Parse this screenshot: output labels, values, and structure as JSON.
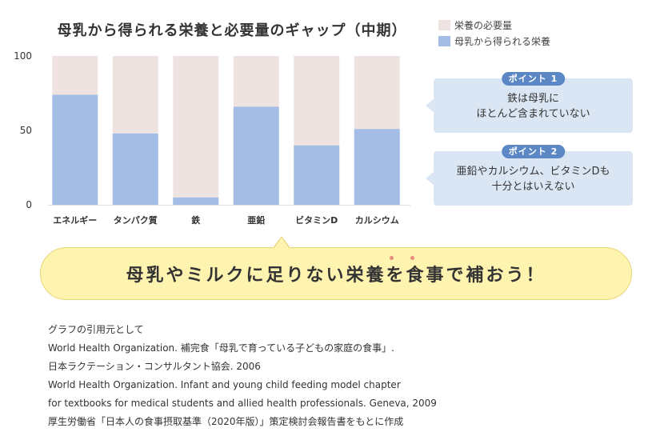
{
  "chart_data": {
    "type": "bar",
    "stacked": true,
    "title": "母乳から得られる栄養と必要量のギャップ（中期）",
    "categories": [
      "エネルギー",
      "タンパク質",
      "鉄",
      "亜鉛",
      "ビタミンD",
      "カルシウム"
    ],
    "series": [
      {
        "name": "母乳から得られる栄養",
        "color": "#a4bde4",
        "values": [
          74,
          48,
          5,
          66,
          40,
          51
        ]
      },
      {
        "name": "栄養の必要量",
        "color": "#efe3e2",
        "values": [
          26,
          52,
          95,
          34,
          60,
          49
        ]
      }
    ],
    "ylim": [
      0,
      100
    ],
    "yticks": [
      0,
      50,
      100
    ],
    "grid": false,
    "legend": "top-right"
  },
  "legend": {
    "items": [
      {
        "label": "栄養の必要量",
        "color": "#efe3e2"
      },
      {
        "label": "母乳から得られる栄養",
        "color": "#a4bde4"
      }
    ]
  },
  "points": [
    {
      "badge": "ポイント 1",
      "lines": [
        "鉄は母乳に",
        "ほとんど含まれていない"
      ]
    },
    {
      "badge": "ポイント 2",
      "lines": [
        "亜鉛やカルシウム、ビタミンDも",
        "十分とはいえない"
      ]
    }
  ],
  "banner": {
    "text": "母乳やミルクに足りない栄養を食事で補おう！"
  },
  "colors": {
    "accent_blue": "#5b88c4",
    "banner_yellow": "#fff3b0",
    "dot_red": "#e98a7e"
  },
  "source": {
    "lines": [
      "グラフの引用元として",
      "World Health Organization. 補完食「母乳で育っている子どもの家庭の食事」.",
      "日本ラクテーション・コンサルタント協会. 2006",
      "World Health Organization. Infant and young child feeding model chapter",
      "for textbooks for medical students and allied health professionals. Geneva, 2009",
      "厚生労働省「日本人の食事摂取基準（2020年版）」策定検討会報告書をもとに作成"
    ]
  }
}
